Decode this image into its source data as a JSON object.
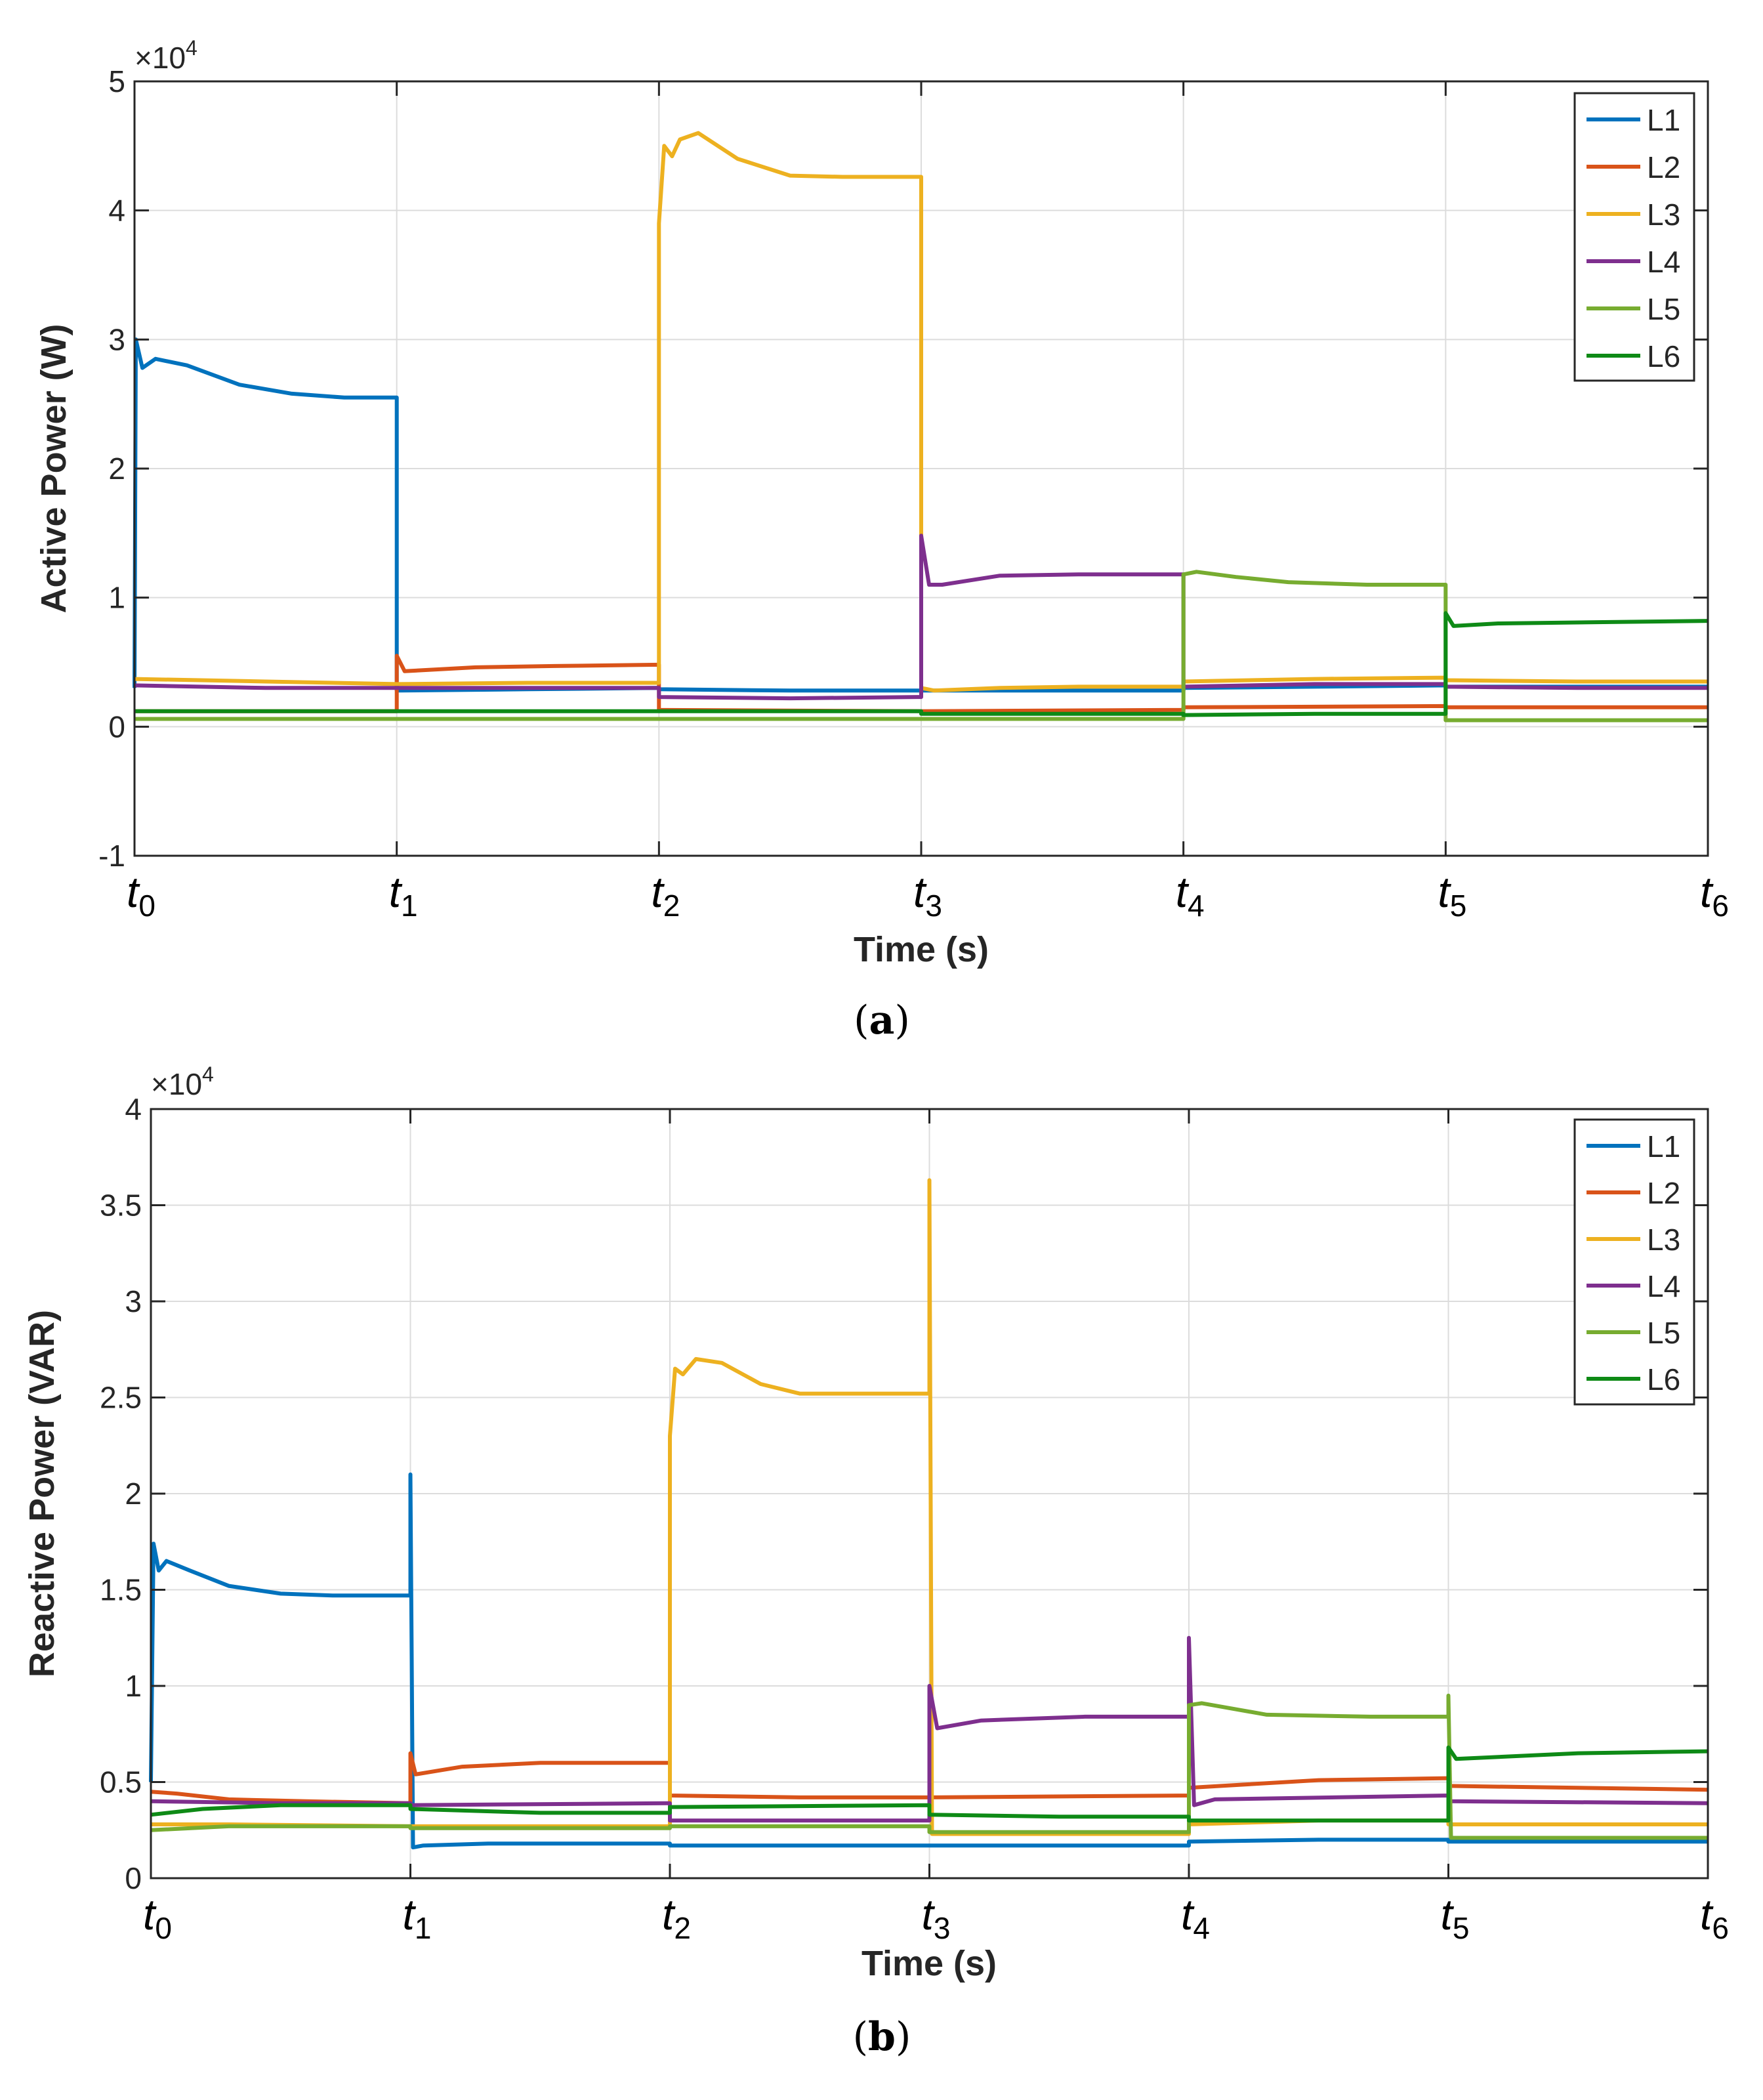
{
  "colors": {
    "L1": "#0072BD",
    "L2": "#D95319",
    "L3": "#EDB120",
    "L4": "#7E2F8E",
    "L5": "#77AC30",
    "L6": "#0E8A16"
  },
  "chart_data": [
    {
      "type": "line",
      "id": "a",
      "panel_label": "a",
      "xlabel": "Time (s)",
      "ylabel": "Active Power (W)",
      "exponent_label": "×10",
      "exponent_power": "4",
      "ylim": [
        -1,
        5
      ],
      "yticks": [
        -1,
        0,
        1,
        2,
        3,
        4,
        5
      ],
      "ytick_labels": [
        "-1",
        "0",
        "1",
        "2",
        "3",
        "4",
        "5"
      ],
      "xlim": [
        0,
        6
      ],
      "xticks": [
        {
          "base": "t",
          "sub": "0"
        },
        {
          "base": "t",
          "sub": "1"
        },
        {
          "base": "t",
          "sub": "2"
        },
        {
          "base": "t",
          "sub": "3"
        },
        {
          "base": "t",
          "sub": "4"
        },
        {
          "base": "t",
          "sub": "5"
        },
        {
          "base": "t",
          "sub": "6"
        }
      ],
      "grid": true,
      "legend": "top-right",
      "series": [
        {
          "name": "L1",
          "points": [
            [
              0,
              0.3
            ],
            [
              0.005,
              3.0
            ],
            [
              0.03,
              2.78
            ],
            [
              0.08,
              2.85
            ],
            [
              0.2,
              2.8
            ],
            [
              0.4,
              2.65
            ],
            [
              0.6,
              2.58
            ],
            [
              0.8,
              2.55
            ],
            [
              1.0,
              2.55
            ],
            [
              1.0,
              0.28
            ],
            [
              1.5,
              0.29
            ],
            [
              2.0,
              0.3
            ],
            [
              2.0,
              0.29
            ],
            [
              2.5,
              0.28
            ],
            [
              3.0,
              0.28
            ],
            [
              3.0,
              0.28
            ],
            [
              3.5,
              0.28
            ],
            [
              4.0,
              0.28
            ],
            [
              4.0,
              0.3
            ],
            [
              4.5,
              0.31
            ],
            [
              5.0,
              0.32
            ],
            [
              5.0,
              0.31
            ],
            [
              5.5,
              0.31
            ],
            [
              6.0,
              0.31
            ]
          ]
        },
        {
          "name": "L2",
          "points": [
            [
              0,
              0.12
            ],
            [
              1.0,
              0.12
            ],
            [
              1.0,
              0.55
            ],
            [
              1.03,
              0.43
            ],
            [
              1.3,
              0.46
            ],
            [
              1.6,
              0.47
            ],
            [
              2.0,
              0.48
            ],
            [
              2.0,
              0.13
            ],
            [
              3.0,
              0.12
            ],
            [
              3.0,
              0.12
            ],
            [
              4.0,
              0.13
            ],
            [
              4.0,
              0.15
            ],
            [
              5.0,
              0.16
            ],
            [
              5.0,
              0.15
            ],
            [
              6.0,
              0.15
            ]
          ]
        },
        {
          "name": "L3",
          "points": [
            [
              0,
              0.37
            ],
            [
              0.5,
              0.35
            ],
            [
              1.0,
              0.33
            ],
            [
              1.0,
              0.33
            ],
            [
              1.5,
              0.34
            ],
            [
              2.0,
              0.34
            ],
            [
              2.0,
              3.9
            ],
            [
              2.02,
              4.5
            ],
            [
              2.05,
              4.42
            ],
            [
              2.08,
              4.55
            ],
            [
              2.15,
              4.6
            ],
            [
              2.3,
              4.4
            ],
            [
              2.5,
              4.27
            ],
            [
              2.7,
              4.26
            ],
            [
              3.0,
              4.26
            ],
            [
              3.0,
              0.3
            ],
            [
              3.05,
              0.28
            ],
            [
              3.3,
              0.3
            ],
            [
              3.6,
              0.31
            ],
            [
              4.0,
              0.31
            ],
            [
              4.0,
              0.35
            ],
            [
              4.5,
              0.37
            ],
            [
              5.0,
              0.38
            ],
            [
              5.0,
              0.36
            ],
            [
              5.5,
              0.35
            ],
            [
              6.0,
              0.35
            ]
          ]
        },
        {
          "name": "L4",
          "points": [
            [
              0,
              0.32
            ],
            [
              0.5,
              0.3
            ],
            [
              1.0,
              0.3
            ],
            [
              1.0,
              0.3
            ],
            [
              1.5,
              0.3
            ],
            [
              2.0,
              0.3
            ],
            [
              2.0,
              0.23
            ],
            [
              2.5,
              0.22
            ],
            [
              3.0,
              0.23
            ],
            [
              3.0,
              1.48
            ],
            [
              3.03,
              1.1
            ],
            [
              3.08,
              1.1
            ],
            [
              3.3,
              1.17
            ],
            [
              3.6,
              1.18
            ],
            [
              4.0,
              1.18
            ],
            [
              4.0,
              0.31
            ],
            [
              4.5,
              0.33
            ],
            [
              5.0,
              0.33
            ],
            [
              5.0,
              0.31
            ],
            [
              5.5,
              0.3
            ],
            [
              6.0,
              0.3
            ]
          ]
        },
        {
          "name": "L5",
          "points": [
            [
              0,
              0.06
            ],
            [
              0.5,
              0.06
            ],
            [
              1.0,
              0.06
            ],
            [
              1.0,
              0.06
            ],
            [
              2.0,
              0.06
            ],
            [
              2.0,
              0.06
            ],
            [
              3.0,
              0.06
            ],
            [
              3.0,
              0.06
            ],
            [
              4.0,
              0.06
            ],
            [
              4.0,
              1.18
            ],
            [
              4.05,
              1.2
            ],
            [
              4.2,
              1.16
            ],
            [
              4.4,
              1.12
            ],
            [
              4.7,
              1.1
            ],
            [
              5.0,
              1.1
            ],
            [
              5.0,
              0.05
            ],
            [
              5.5,
              0.05
            ],
            [
              6.0,
              0.05
            ]
          ]
        },
        {
          "name": "L6",
          "points": [
            [
              0,
              0.12
            ],
            [
              0.5,
              0.12
            ],
            [
              1.0,
              0.12
            ],
            [
              1.0,
              0.12
            ],
            [
              2.0,
              0.12
            ],
            [
              2.0,
              0.12
            ],
            [
              3.0,
              0.12
            ],
            [
              3.0,
              0.1
            ],
            [
              3.5,
              0.1
            ],
            [
              4.0,
              0.1
            ],
            [
              4.0,
              0.09
            ],
            [
              4.5,
              0.1
            ],
            [
              5.0,
              0.1
            ],
            [
              5.0,
              0.88
            ],
            [
              5.03,
              0.78
            ],
            [
              5.2,
              0.8
            ],
            [
              5.6,
              0.81
            ],
            [
              6.0,
              0.82
            ]
          ]
        }
      ]
    },
    {
      "type": "line",
      "id": "b",
      "panel_label": "b",
      "xlabel": "Time (s)",
      "ylabel": "Reactive Power (VAR)",
      "exponent_label": "×10",
      "exponent_power": "4",
      "ylim": [
        0,
        4
      ],
      "yticks": [
        0,
        0.5,
        1,
        1.5,
        2,
        2.5,
        3,
        3.5,
        4
      ],
      "ytick_labels": [
        "0",
        "0.5",
        "1",
        "1.5",
        "2",
        "2.5",
        "3",
        "3.5",
        "4"
      ],
      "xlim": [
        0,
        6
      ],
      "xticks": [
        {
          "base": "t",
          "sub": "0"
        },
        {
          "base": "t",
          "sub": "1"
        },
        {
          "base": "t",
          "sub": "2"
        },
        {
          "base": "t",
          "sub": "3"
        },
        {
          "base": "t",
          "sub": "4"
        },
        {
          "base": "t",
          "sub": "5"
        },
        {
          "base": "t",
          "sub": "6"
        }
      ],
      "grid": true,
      "legend": "top-right",
      "series": [
        {
          "name": "L1",
          "points": [
            [
              0,
              0.5
            ],
            [
              0.01,
              1.74
            ],
            [
              0.03,
              1.6
            ],
            [
              0.06,
              1.65
            ],
            [
              0.15,
              1.6
            ],
            [
              0.3,
              1.52
            ],
            [
              0.5,
              1.48
            ],
            [
              0.7,
              1.47
            ],
            [
              1.0,
              1.47
            ],
            [
              1.0,
              2.1
            ],
            [
              1.01,
              0.16
            ],
            [
              1.05,
              0.17
            ],
            [
              1.3,
              0.18
            ],
            [
              2.0,
              0.18
            ],
            [
              2.0,
              0.17
            ],
            [
              3.0,
              0.17
            ],
            [
              3.0,
              0.17
            ],
            [
              4.0,
              0.17
            ],
            [
              4.0,
              0.19
            ],
            [
              4.5,
              0.2
            ],
            [
              5.0,
              0.2
            ],
            [
              5.0,
              0.19
            ],
            [
              6.0,
              0.19
            ]
          ]
        },
        {
          "name": "L2",
          "points": [
            [
              0,
              0.45
            ],
            [
              0.1,
              0.44
            ],
            [
              0.3,
              0.41
            ],
            [
              0.6,
              0.4
            ],
            [
              1.0,
              0.39
            ],
            [
              1.0,
              0.65
            ],
            [
              1.02,
              0.54
            ],
            [
              1.2,
              0.58
            ],
            [
              1.5,
              0.6
            ],
            [
              2.0,
              0.6
            ],
            [
              2.0,
              0.43
            ],
            [
              2.5,
              0.42
            ],
            [
              3.0,
              0.42
            ],
            [
              3.0,
              0.42
            ],
            [
              4.0,
              0.43
            ],
            [
              4.0,
              0.47
            ],
            [
              4.5,
              0.51
            ],
            [
              5.0,
              0.52
            ],
            [
              5.0,
              0.48
            ],
            [
              5.5,
              0.47
            ],
            [
              6.0,
              0.46
            ]
          ]
        },
        {
          "name": "L3",
          "points": [
            [
              0,
              0.28
            ],
            [
              0.3,
              0.28
            ],
            [
              1.0,
              0.27
            ],
            [
              1.0,
              0.27
            ],
            [
              2.0,
              0.27
            ],
            [
              2.0,
              2.3
            ],
            [
              2.02,
              2.65
            ],
            [
              2.05,
              2.62
            ],
            [
              2.1,
              2.7
            ],
            [
              2.2,
              2.68
            ],
            [
              2.35,
              2.57
            ],
            [
              2.5,
              2.52
            ],
            [
              3.0,
              2.52
            ],
            [
              3.0,
              3.63
            ],
            [
              3.01,
              0.23
            ],
            [
              3.5,
              0.23
            ],
            [
              4.0,
              0.23
            ],
            [
              4.0,
              0.28
            ],
            [
              4.5,
              0.3
            ],
            [
              5.0,
              0.3
            ],
            [
              5.0,
              0.28
            ],
            [
              6.0,
              0.28
            ]
          ]
        },
        {
          "name": "L4",
          "points": [
            [
              0,
              0.4
            ],
            [
              0.5,
              0.39
            ],
            [
              1.0,
              0.39
            ],
            [
              1.0,
              0.38
            ],
            [
              2.0,
              0.39
            ],
            [
              2.0,
              0.3
            ],
            [
              3.0,
              0.3
            ],
            [
              3.0,
              1.0
            ],
            [
              3.03,
              0.78
            ],
            [
              3.2,
              0.82
            ],
            [
              3.6,
              0.84
            ],
            [
              4.0,
              0.84
            ],
            [
              4.0,
              1.25
            ],
            [
              4.02,
              0.38
            ],
            [
              4.1,
              0.41
            ],
            [
              5.0,
              0.43
            ],
            [
              5.0,
              0.4
            ],
            [
              6.0,
              0.39
            ]
          ]
        },
        {
          "name": "L5",
          "points": [
            [
              0,
              0.25
            ],
            [
              0.3,
              0.27
            ],
            [
              1.0,
              0.27
            ],
            [
              1.0,
              0.26
            ],
            [
              2.0,
              0.26
            ],
            [
              2.0,
              0.27
            ],
            [
              3.0,
              0.27
            ],
            [
              3.0,
              0.24
            ],
            [
              4.0,
              0.24
            ],
            [
              4.0,
              0.9
            ],
            [
              4.05,
              0.91
            ],
            [
              4.3,
              0.85
            ],
            [
              4.7,
              0.84
            ],
            [
              5.0,
              0.84
            ],
            [
              5.0,
              0.95
            ],
            [
              5.01,
              0.21
            ],
            [
              6.0,
              0.21
            ]
          ]
        },
        {
          "name": "L6",
          "points": [
            [
              0,
              0.33
            ],
            [
              0.2,
              0.36
            ],
            [
              0.5,
              0.38
            ],
            [
              1.0,
              0.38
            ],
            [
              1.0,
              0.36
            ],
            [
              1.5,
              0.34
            ],
            [
              2.0,
              0.34
            ],
            [
              2.0,
              0.37
            ],
            [
              3.0,
              0.38
            ],
            [
              3.0,
              0.33
            ],
            [
              3.5,
              0.32
            ],
            [
              4.0,
              0.32
            ],
            [
              4.0,
              0.3
            ],
            [
              5.0,
              0.3
            ],
            [
              5.0,
              0.68
            ],
            [
              5.03,
              0.62
            ],
            [
              5.5,
              0.65
            ],
            [
              6.0,
              0.66
            ]
          ]
        }
      ]
    }
  ]
}
